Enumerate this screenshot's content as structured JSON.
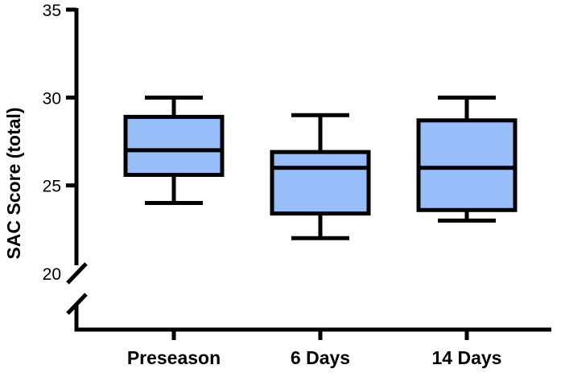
{
  "chart_data": {
    "type": "box",
    "ylabel": "SAC Score (total)",
    "xlabel": "",
    "ylim": [
      20,
      35
    ],
    "axis_break": true,
    "y_ticks": [
      20,
      25,
      30,
      35
    ],
    "y_tick_labels": [
      "20",
      "25",
      "30",
      "35"
    ],
    "categories": [
      "Preseason",
      "6 Days",
      "14 Days"
    ],
    "boxes": [
      {
        "category": "Preseason",
        "min": 24,
        "q1": 25.6,
        "median": 27,
        "q3": 28.9,
        "max": 30
      },
      {
        "category": "6 Days",
        "min": 22,
        "q1": 23.4,
        "median": 26,
        "q3": 26.9,
        "max": 29
      },
      {
        "category": "14 Days",
        "min": 23,
        "q1": 23.6,
        "median": 26,
        "q3": 28.7,
        "max": 30
      }
    ],
    "colors": {
      "box_fill": "#97BEF9",
      "stroke": "#000000"
    }
  }
}
